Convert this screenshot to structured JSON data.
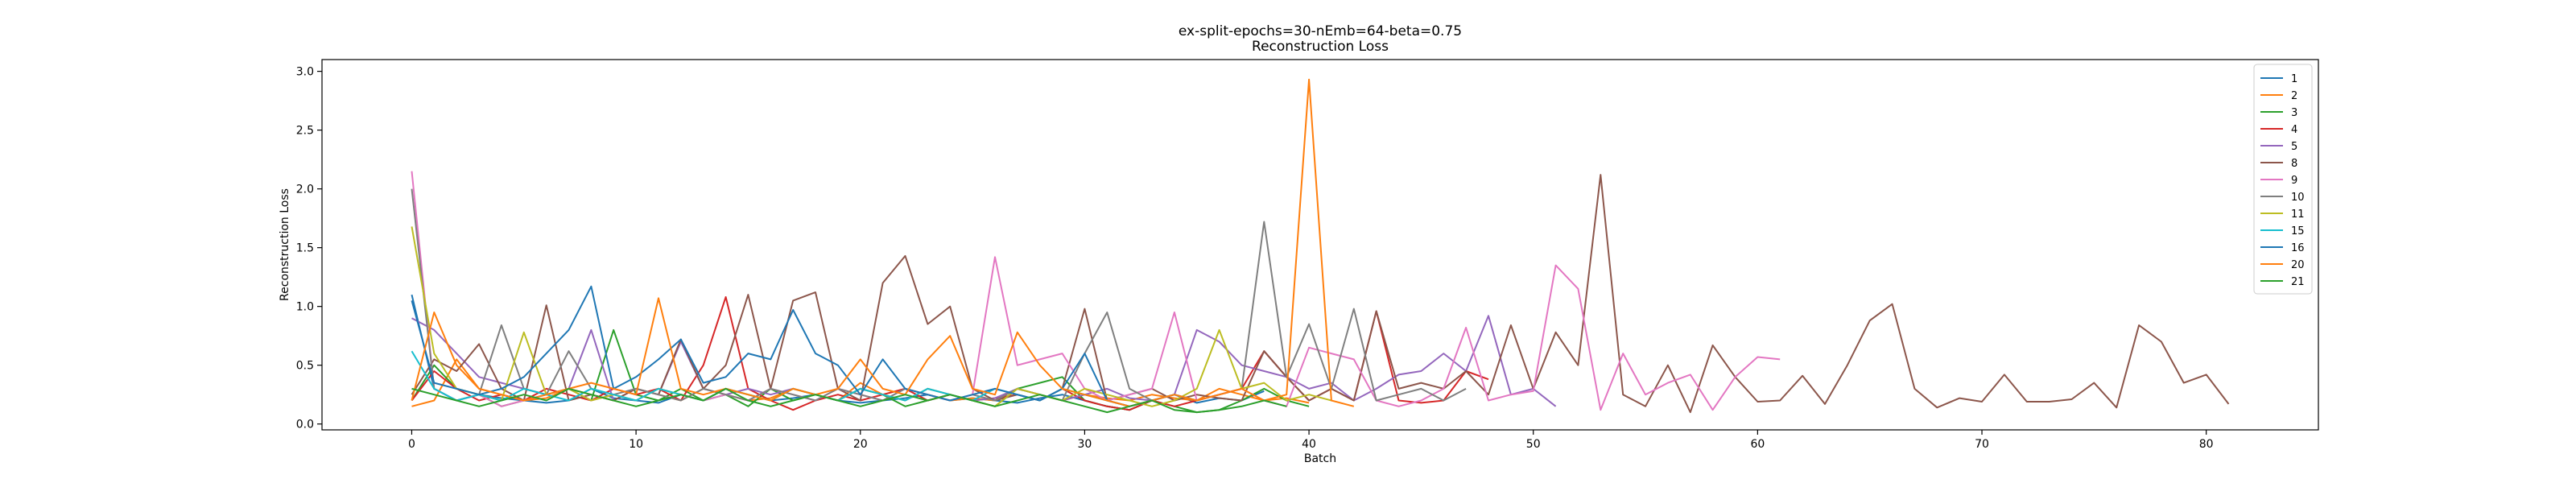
{
  "chart_data": {
    "type": "line",
    "title": "ex-split-epochs=30-nEmb=64-beta=0.75",
    "subtitle": "Reconstruction Loss",
    "xlabel": "Batch",
    "ylabel": "Reconstruction Loss",
    "xlim": [
      -4,
      85
    ],
    "ylim": [
      -0.05,
      3.1
    ],
    "xticks": [
      0,
      10,
      20,
      30,
      40,
      50,
      60,
      70,
      80
    ],
    "yticks": [
      0.0,
      0.5,
      1.0,
      1.5,
      2.0,
      2.5,
      3.0
    ],
    "xtick_labels": [
      "0",
      "10",
      "20",
      "30",
      "40",
      "50",
      "60",
      "70",
      "80"
    ],
    "ytick_labels": [
      "0.0",
      "0.5",
      "1.0",
      "1.5",
      "2.0",
      "2.5",
      "3.0"
    ],
    "grid": false,
    "legend_position": "upper right",
    "series": [
      {
        "name": "1",
        "color": "#1f77b4",
        "values": [
          1.1,
          0.3,
          0.2,
          0.25,
          0.22,
          0.2,
          0.18,
          0.2,
          0.3,
          0.22,
          0.2,
          0.18,
          0.25,
          0.2,
          0.3,
          0.25,
          0.2,
          0.22,
          0.25,
          0.2,
          0.18,
          0.2,
          0.22,
          0.25,
          0.2,
          0.22,
          0.2,
          0.18,
          0.22,
          0.25,
          0.2,
          0.15,
          0.12,
          0.2,
          0.25,
          0.18,
          0.22,
          0.2,
          0.28
        ]
      },
      {
        "name": "2",
        "color": "#ff7f0e",
        "values": [
          0.15,
          0.2,
          0.55,
          0.3,
          0.25,
          0.2,
          0.22,
          0.3,
          0.25,
          0.2,
          0.3,
          0.25,
          0.2,
          0.3,
          0.25,
          0.2,
          0.22,
          0.3,
          0.25,
          0.2,
          0.35,
          0.25,
          0.3,
          0.25,
          0.2,
          0.22,
          0.2,
          0.3,
          0.25,
          0.2,
          0.25,
          0.22,
          0.2,
          0.25,
          0.22,
          0.2,
          0.3,
          0.25,
          0.2,
          0.22,
          0.18
        ]
      },
      {
        "name": "3",
        "color": "#2ca02c",
        "values": [
          0.2,
          0.5,
          0.3,
          0.25,
          0.15,
          0.2,
          0.25,
          0.3,
          0.2,
          0.8,
          0.25,
          0.2,
          0.3,
          0.2,
          0.25,
          0.15,
          0.3,
          0.2,
          0.25,
          0.2,
          0.3,
          0.25,
          0.15,
          0.2,
          0.25,
          0.2,
          0.15,
          0.3,
          0.35,
          0.4,
          0.2,
          0.15,
          0.12,
          0.2,
          0.15,
          0.1,
          0.12,
          0.2,
          0.3,
          0.2,
          0.15
        ]
      },
      {
        "name": "4",
        "color": "#d62728",
        "values": [
          0.2,
          0.45,
          0.3,
          0.2,
          0.25,
          0.2,
          0.3,
          0.25,
          0.2,
          0.3,
          0.25,
          0.3,
          0.2,
          0.5,
          1.08,
          0.3,
          0.2,
          0.12,
          0.2,
          0.25,
          0.2,
          0.25,
          0.3,
          0.2,
          0.25,
          0.2,
          0.22,
          0.25,
          0.2,
          0.3,
          0.2,
          0.15,
          0.12,
          0.2,
          0.15,
          0.2,
          0.25,
          0.3,
          0.62,
          0.4,
          0.2,
          0.3,
          0.2,
          0.96,
          0.2,
          0.18,
          0.2,
          0.45,
          0.38
        ]
      },
      {
        "name": "5",
        "color": "#9467bd",
        "values": [
          0.9,
          0.8,
          0.6,
          0.4,
          0.35,
          0.3,
          0.25,
          0.3,
          0.8,
          0.2,
          0.3,
          0.25,
          0.7,
          0.3,
          0.25,
          0.3,
          0.25,
          0.3,
          0.25,
          0.2,
          0.3,
          0.25,
          0.2,
          0.3,
          0.25,
          0.2,
          0.22,
          0.3,
          0.25,
          0.2,
          0.25,
          0.3,
          0.22,
          0.2,
          0.25,
          0.8,
          0.7,
          0.5,
          0.45,
          0.4,
          0.3,
          0.35,
          0.2,
          0.3,
          0.42,
          0.45,
          0.6,
          0.45,
          0.92,
          0.25,
          0.3,
          0.15
        ]
      },
      {
        "name": "8",
        "color": "#8c564b",
        "values": [
          0.25,
          0.55,
          0.45,
          0.68,
          0.3,
          0.2,
          1.01,
          0.2,
          0.25,
          0.2,
          0.3,
          0.25,
          0.72,
          0.3,
          0.5,
          1.1,
          0.3,
          1.05,
          1.12,
          0.3,
          0.2,
          1.2,
          1.43,
          0.85,
          1.0,
          0.3,
          0.2,
          0.25,
          0.2,
          0.3,
          0.98,
          0.2,
          0.25,
          0.3,
          0.2,
          0.25,
          0.22,
          0.2,
          0.62,
          0.4,
          0.2,
          0.3,
          0.2,
          0.96,
          0.3,
          0.35,
          0.3,
          0.45,
          0.25,
          0.84,
          0.3,
          0.78,
          0.5,
          2.12,
          0.25,
          0.15,
          0.5,
          0.1,
          0.67,
          0.4,
          0.19,
          0.2,
          0.41,
          0.17,
          0.5,
          0.88,
          1.02,
          0.3,
          0.14,
          0.22,
          0.19,
          0.42,
          0.19,
          0.19,
          0.21,
          0.35,
          0.14,
          0.84,
          0.7,
          0.35,
          0.42,
          0.17
        ]
      },
      {
        "name": "9",
        "color": "#e377c2",
        "values": [
          2.15,
          0.3,
          0.2,
          0.25,
          0.15,
          0.2,
          0.25,
          0.3,
          0.2,
          0.25,
          0.2,
          0.3,
          0.25,
          0.2,
          0.25,
          0.2,
          0.3,
          0.25,
          0.2,
          0.3,
          0.25,
          0.2,
          0.3,
          0.25,
          0.2,
          0.25,
          1.42,
          0.5,
          0.55,
          0.6,
          0.3,
          0.2,
          0.25,
          0.3,
          0.95,
          0.2,
          0.25,
          0.3,
          0.2,
          0.15,
          0.65,
          0.6,
          0.55,
          0.2,
          0.15,
          0.2,
          0.3,
          0.82,
          0.2,
          0.25,
          0.28,
          1.35,
          1.15,
          0.12,
          0.6,
          0.25,
          0.35,
          0.42,
          0.12,
          0.4,
          0.57,
          0.55
        ]
      },
      {
        "name": "10",
        "color": "#7f7f7f",
        "values": [
          2.0,
          0.3,
          0.2,
          0.25,
          0.84,
          0.3,
          0.25,
          0.62,
          0.3,
          0.25,
          0.3,
          0.25,
          0.2,
          0.3,
          0.25,
          0.2,
          0.3,
          0.25,
          0.2,
          0.3,
          0.25,
          0.2,
          0.3,
          0.25,
          0.2,
          0.25,
          0.2,
          0.3,
          0.25,
          0.2,
          0.6,
          0.95,
          0.3,
          0.2,
          0.25,
          0.2,
          0.25,
          0.3,
          1.72,
          0.4,
          0.85,
          0.3,
          0.98,
          0.2,
          0.25,
          0.3,
          0.2,
          0.3
        ]
      },
      {
        "name": "11",
        "color": "#bcbd22",
        "values": [
          1.68,
          0.6,
          0.3,
          0.25,
          0.2,
          0.78,
          0.25,
          0.3,
          0.2,
          0.25,
          0.2,
          0.3,
          0.25,
          0.2,
          0.3,
          0.25,
          0.2,
          0.3,
          0.25,
          0.2,
          0.3,
          0.25,
          0.2,
          0.3,
          0.25,
          0.2,
          0.15,
          0.3,
          0.25,
          0.2,
          0.3,
          0.25,
          0.2,
          0.15,
          0.2,
          0.3,
          0.8,
          0.3,
          0.35,
          0.2,
          0.25,
          0.2
        ]
      },
      {
        "name": "15",
        "color": "#17becf",
        "values": [
          0.62,
          0.3,
          0.2,
          0.25,
          0.2,
          0.3,
          0.25,
          0.2,
          0.3,
          0.25,
          0.2,
          0.3,
          0.25,
          0.2,
          0.3,
          0.25,
          0.2,
          0.3,
          0.25,
          0.2,
          0.3,
          0.25,
          0.2,
          0.3,
          0.25,
          0.2,
          0.3,
          0.25,
          0.2,
          0.3,
          0.25,
          0.2,
          0.15,
          0.2,
          0.25
        ]
      },
      {
        "name": "16",
        "color": "#1f77b4",
        "values": [
          1.05,
          0.35,
          0.3,
          0.25,
          0.3,
          0.4,
          0.6,
          0.8,
          1.17,
          0.3,
          0.4,
          0.55,
          0.72,
          0.35,
          0.4,
          0.6,
          0.55,
          0.97,
          0.6,
          0.5,
          0.25,
          0.55,
          0.3,
          0.25,
          0.2,
          0.25,
          0.3,
          0.25,
          0.2,
          0.3,
          0.6,
          0.2,
          0.15,
          0.2,
          0.25,
          0.2
        ]
      },
      {
        "name": "20",
        "color": "#ff7f0e",
        "values": [
          0.2,
          0.95,
          0.5,
          0.3,
          0.25,
          0.2,
          0.25,
          0.3,
          0.35,
          0.3,
          0.25,
          1.07,
          0.3,
          0.25,
          0.3,
          0.25,
          0.2,
          0.3,
          0.25,
          0.3,
          0.55,
          0.3,
          0.25,
          0.55,
          0.75,
          0.3,
          0.25,
          0.78,
          0.5,
          0.3,
          0.25,
          0.2,
          0.15,
          0.2,
          0.25,
          0.2,
          0.25,
          0.3,
          0.2,
          0.25,
          2.93,
          0.2,
          0.15
        ]
      },
      {
        "name": "21",
        "color": "#2ca02c",
        "values": [
          0.3,
          0.25,
          0.2,
          0.15,
          0.2,
          0.25,
          0.2,
          0.3,
          0.25,
          0.2,
          0.15,
          0.2,
          0.25,
          0.2,
          0.3,
          0.2,
          0.15,
          0.2,
          0.25,
          0.2,
          0.15,
          0.2,
          0.25,
          0.2,
          0.25,
          0.2,
          0.15,
          0.2,
          0.25,
          0.2,
          0.15,
          0.1,
          0.15,
          0.2,
          0.12,
          0.1,
          0.12,
          0.15,
          0.2,
          0.15
        ]
      }
    ]
  }
}
